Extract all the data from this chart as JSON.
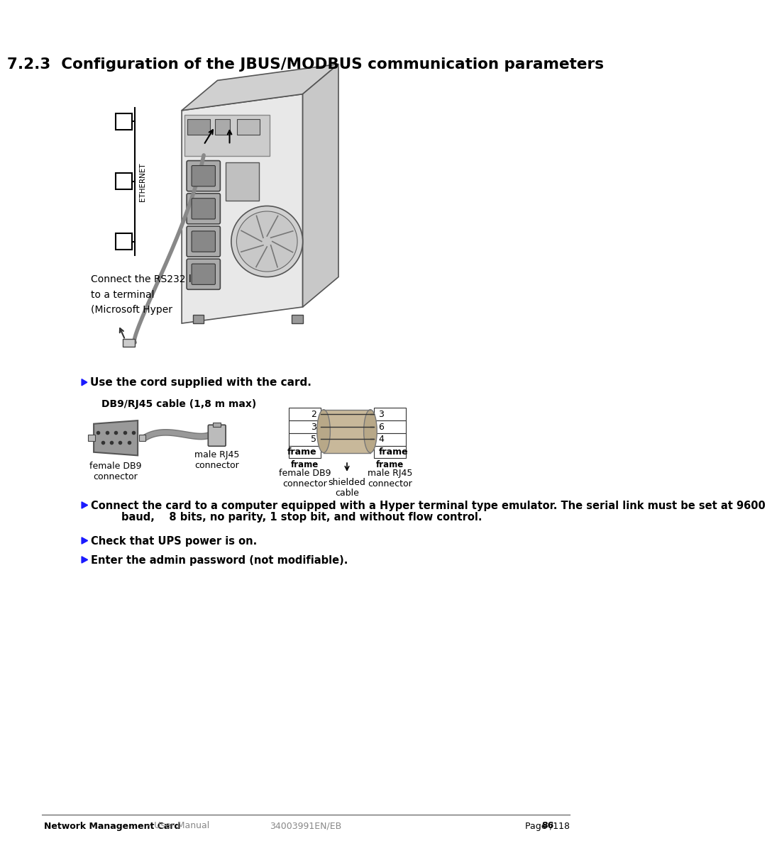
{
  "title": "7.2.3  Configuration of the JBUS/MODBUS communication parameters",
  "bg_color": "#ffffff",
  "text_color": "#000000",
  "footer_left_bold": "Network Management Card",
  "footer_left_normal": " – User Manual",
  "footer_center": "34003991EN/EB",
  "footer_right_normal": "Page ",
  "footer_right_bold": "86",
  "footer_right_end": "/118",
  "bullet_color": "#1a1aff",
  "bullet1_text": "Use the cord supplied with the card.",
  "cable_label": "DB9/RJ45 cable (1,8 m max)",
  "female_db9_label": "female DB9\nconnector",
  "male_rj45_label": "male RJ45\nconnector",
  "female_db9_label2": "female DB9\nconnector",
  "shielded_label": "shielded\ncable",
  "male_rj45_label2": "male RJ45\nconnector",
  "pin_left": [
    "2",
    "3",
    "5",
    "frame"
  ],
  "pin_right": [
    "3",
    "6",
    "4",
    "frame"
  ],
  "bullet2_line1": "Connect the card to a computer equipped with a Hyper terminal type emulator. The serial link must be set at 9600",
  "bullet2_line2": "baud,    8 bits, no parity, 1 stop bit, and without flow control.",
  "bullet3_text": "Check that UPS power is on.",
  "bullet4_text": "Enter the admin password (not modifiable).",
  "caption_line1": "Connect the RS232 link",
  "caption_line2": "to a terminal",
  "caption_line3": "(Microsoft Hyper",
  "ethernet_label": "ETHERNET"
}
